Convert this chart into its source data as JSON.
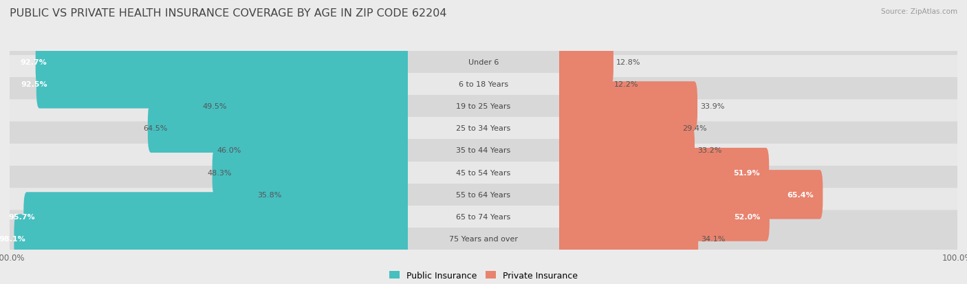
{
  "title": "PUBLIC VS PRIVATE HEALTH INSURANCE COVERAGE BY AGE IN ZIP CODE 62204",
  "source": "Source: ZipAtlas.com",
  "categories": [
    "Under 6",
    "6 to 18 Years",
    "19 to 25 Years",
    "25 to 34 Years",
    "35 to 44 Years",
    "45 to 54 Years",
    "55 to 64 Years",
    "65 to 74 Years",
    "75 Years and over"
  ],
  "public_values": [
    92.7,
    92.5,
    49.5,
    64.5,
    46.0,
    48.3,
    35.8,
    95.7,
    98.1
  ],
  "private_values": [
    12.8,
    12.2,
    33.9,
    29.4,
    33.2,
    51.9,
    65.4,
    52.0,
    34.1
  ],
  "public_color": "#46BFBF",
  "private_color": "#E8836E",
  "bg_color": "#EBEBEB",
  "row_bg_color": "#D8D8D8",
  "row_alt_bg_color": "#E8E8E8",
  "title_fontsize": 11.5,
  "label_fontsize": 8.0,
  "value_fontsize": 8.0,
  "tick_fontsize": 8.5,
  "legend_fontsize": 9,
  "max_val": 100.0
}
